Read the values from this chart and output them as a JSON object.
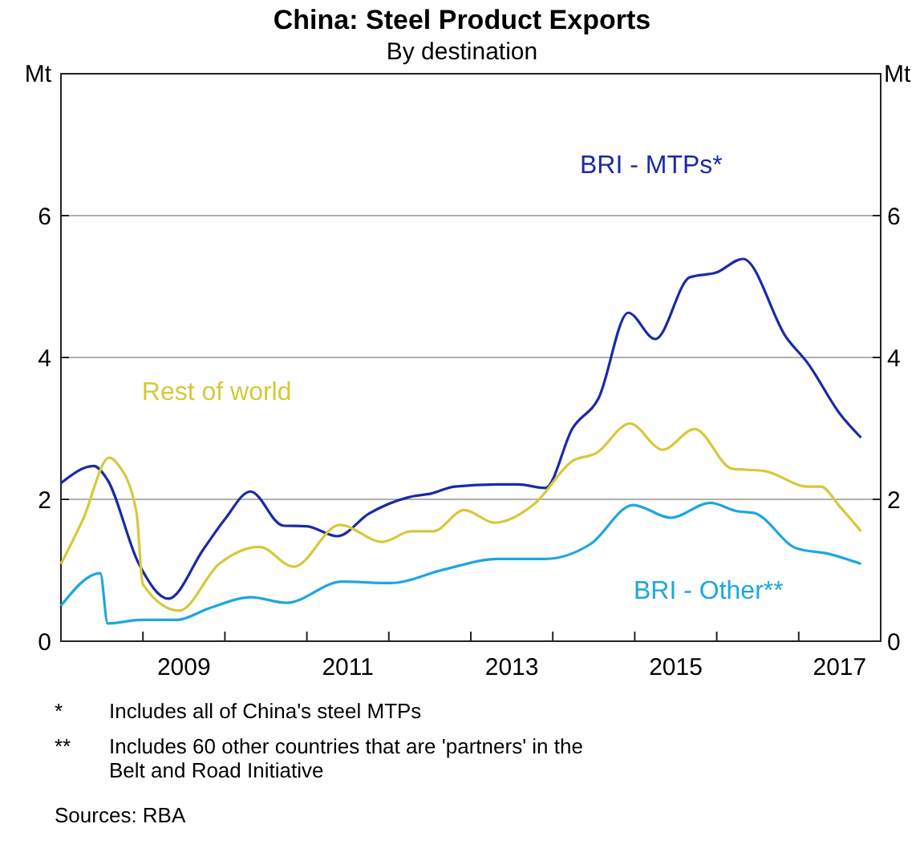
{
  "chart_data": {
    "type": "line",
    "title": "China: Steel Product Exports",
    "subtitle": "By destination",
    "ylabel": "Mt",
    "y2label": "Mt",
    "xlim": [
      2008,
      2018
    ],
    "xticks": [
      {
        "value": 2009,
        "label": null
      },
      {
        "value": 2010,
        "label": null
      },
      {
        "value": 2011,
        "label": null
      },
      {
        "value": 2012,
        "label": null
      },
      {
        "value": 2013,
        "label": null
      },
      {
        "value": 2014,
        "label": null
      },
      {
        "value": 2015,
        "label": null
      },
      {
        "value": 2016,
        "label": null
      },
      {
        "value": 2017,
        "label": null
      },
      {
        "value": 2009.5,
        "label": "2009"
      },
      {
        "value": 2011.5,
        "label": "2011"
      },
      {
        "value": 2013.5,
        "label": "2013"
      },
      {
        "value": 2015.5,
        "label": "2015"
      },
      {
        "value": 2017.5,
        "label": "2017"
      }
    ],
    "ylim": [
      0,
      8
    ],
    "yticks": [
      0,
      2,
      4,
      6
    ],
    "y2lim": [
      0,
      8
    ],
    "y2ticks": [
      0,
      2,
      4,
      6
    ],
    "grid": "y",
    "series": [
      {
        "name": "BRI - MTPs*",
        "color": "#1a2aa8",
        "x": [
          2008.0,
          2008.4,
          2008.56,
          2008.95,
          2009.31,
          2009.74,
          2010.0,
          2010.31,
          2010.71,
          2011.0,
          2011.37,
          2011.76,
          2012.28,
          2012.51,
          2012.8,
          2013.32,
          2013.58,
          2013.91,
          2014.24,
          2014.56,
          2014.92,
          2015.25,
          2015.67,
          2016.0,
          2016.32,
          2016.85,
          2017.11,
          2017.5,
          2017.76
        ],
        "values": [
          2.23,
          2.47,
          2.29,
          1.09,
          0.6,
          1.3,
          1.72,
          2.11,
          1.63,
          1.62,
          1.48,
          1.8,
          2.04,
          2.08,
          2.18,
          2.21,
          2.21,
          2.16,
          3.0,
          3.43,
          4.63,
          4.26,
          5.13,
          5.2,
          5.39,
          4.28,
          3.92,
          3.21,
          2.87
        ]
      },
      {
        "name": "Rest of world",
        "color": "#d6c93a",
        "x": [
          2008.0,
          2008.27,
          2008.59,
          2008.69,
          2008.92,
          2009.0,
          2009.44,
          2009.93,
          2010.42,
          2010.84,
          2011.4,
          2011.92,
          2012.28,
          2012.54,
          2012.92,
          2013.29,
          2013.78,
          2014.24,
          2014.53,
          2014.94,
          2015.34,
          2015.73,
          2016.19,
          2016.58,
          2017.11,
          2017.27,
          2017.5,
          2017.76
        ],
        "values": [
          1.09,
          1.72,
          2.59,
          2.5,
          1.83,
          0.8,
          0.43,
          1.09,
          1.33,
          1.05,
          1.64,
          1.4,
          1.55,
          1.55,
          1.85,
          1.67,
          1.94,
          2.54,
          2.65,
          3.07,
          2.7,
          2.99,
          2.43,
          2.4,
          2.18,
          2.18,
          1.9,
          1.55
        ]
      },
      {
        "name": "BRI - Other**",
        "color": "#1ea6e0",
        "x": [
          2008.0,
          2008.48,
          2008.57,
          2008.98,
          2009.41,
          2009.8,
          2010.32,
          2010.75,
          2011.43,
          2012.02,
          2012.67,
          2013.32,
          2013.91,
          2014.46,
          2014.98,
          2015.44,
          2015.92,
          2016.26,
          2016.45,
          2016.97,
          2017.37,
          2017.76
        ],
        "values": [
          0.5,
          0.96,
          0.25,
          0.3,
          0.3,
          0.46,
          0.62,
          0.54,
          0.84,
          0.82,
          1.01,
          1.16,
          1.16,
          1.37,
          1.92,
          1.74,
          1.95,
          1.83,
          1.81,
          1.31,
          1.23,
          1.09
        ]
      }
    ],
    "annotations": [
      "*\tIncludes all of China's steel MTPs",
      "**\tIncludes 60 other countries that are 'partners' in the Belt and Road Initiative",
      "Sources: RBA"
    ]
  }
}
